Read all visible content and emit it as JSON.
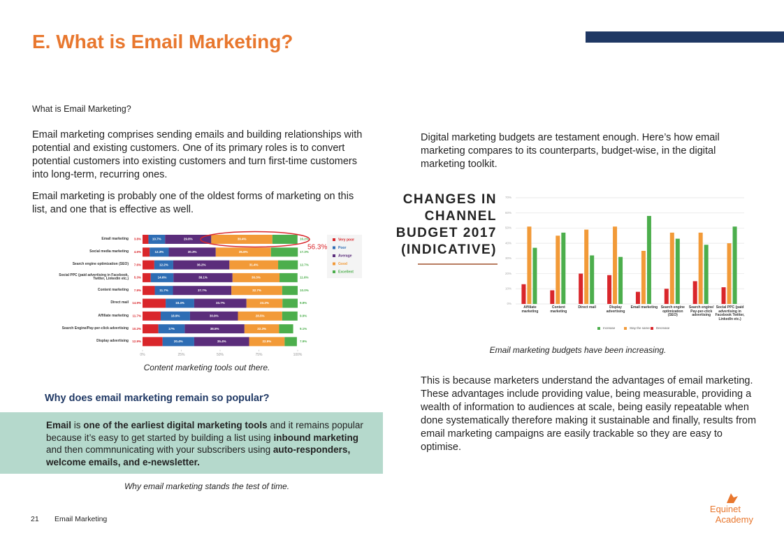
{
  "header": {
    "title": "E. What is Email Marketing?"
  },
  "left": {
    "heading": "What is Email Marketing?",
    "paragraphs": [
      "Email marketing comprises sending emails and building relationships with potential and existing customers. One of its primary roles is to convert potential customers into existing customers and turn first-time customers into long-term, recurring ones.",
      "Email marketing is probably one of the oldest forms of marketing on this list, and one that is effective as well."
    ],
    "chart_caption": "Content marketing tools out there.",
    "subheading": "Why does email marketing remain so popular?",
    "callout": [
      {
        "text": "Email",
        "bold": true
      },
      {
        "text": " is ",
        "bold": false
      },
      {
        "text": "one of the earliest digital marketing tools",
        "bold": true
      },
      {
        "text": " and it remains popular because it’s easy to get started by building a list using ",
        "bold": false
      },
      {
        "text": "inbound marketing",
        "bold": true
      },
      {
        "text": " and then commnunicating with your subscribers using ",
        "bold": false
      },
      {
        "text": "auto-responders, welcome emails, and e-newsletter.",
        "bold": true
      }
    ],
    "callout_caption": "Why email marketing stands the test of time."
  },
  "right": {
    "intro": "Digital marketing budgets are testament enough. Here’s how email marketing compares to its counterparts, budget-wise, in the digital marketing toolkit.",
    "chart_caption": "Email marketing budgets have been increasing.",
    "paragraph": "This is because marketers understand the advantages of email marketing. These advantages include providing value, being measurable, providing a wealth of information to audiences at scale, being easily repeatable when done systematically therefore making it sustainable and finally, results from email marketing campaigns are easily trackable so they are easy to optimise."
  },
  "chart_data": [
    {
      "type": "stacked-bar-horizontal",
      "categories": [
        "Email marketing",
        "Social media marketing",
        "Search engine optimization (SEO)",
        "Social PPC (paid advertising in Facebook, Twitter, Linkedin etc.)",
        "Content marketing",
        "Direct mail",
        "Affiliate marketing",
        "Search Engine/Pay-per-click advertising",
        "Display advertising"
      ],
      "series": [
        {
          "name": "Very poor",
          "color": "#d9262b",
          "values": [
            3.8,
            4.6,
            7.6,
            5.3,
            7.9,
            14.9,
            11.7,
            10.2,
            12.9
          ],
          "value_labels": [
            "3.8%",
            "4.6%",
            "7.6%",
            "5.3%",
            "7.9%",
            "14.9%",
            "11.7%",
            "10.2%",
            "12.9%"
          ]
        },
        {
          "name": "Poor",
          "color": "#2e6db4",
          "values": [
            10.7,
            12.3,
            12.2,
            14.6,
            11.7,
            18.4,
            18.9,
            17,
            20.4
          ],
          "value_labels": [
            "10.7%",
            "12.3%",
            "12.2%",
            "14.6%",
            "11.7%",
            "18.4%",
            "18.9%",
            "17%",
            "20.4%"
          ]
        },
        {
          "name": "Average",
          "color": "#5b2d7b",
          "values": [
            29.8,
            30.3,
            36.2,
            38.1,
            37.7,
            33.7,
            30.9,
            38.5,
            35.4
          ],
          "value_labels": [
            "29.8%",
            "30.3%",
            "36.2%",
            "38.1%",
            "37.7%",
            "33.7%",
            "30.9%",
            "38.5%",
            "35.4%"
          ]
        },
        {
          "name": "Good",
          "color": "#f29a38",
          "values": [
            39.4,
            35.6,
            31.4,
            30.3,
            32.7,
            23.2,
            28.5,
            22.3,
            22.9
          ],
          "value_labels": [
            "39.4%",
            "35.6%",
            "31.4%",
            "30.3%",
            "32.7%",
            "23.2%",
            "28.5%",
            "22.3%",
            "22.9%"
          ]
        },
        {
          "name": "Excellent",
          "color": "#4cae4c",
          "values": [
            16.2,
            17.3,
            12.7,
            11.6,
            10.0,
            9.8,
            9.9,
            9.1,
            7.9
          ],
          "value_labels": [
            "16.2%",
            "17.3%",
            "12.7%",
            "11.6%",
            "10.0%",
            "9.8%",
            "9.9%",
            "9.1%",
            "7.9%"
          ]
        }
      ],
      "xlim": [
        0,
        100
      ],
      "xticks": [
        {
          "value": 0,
          "label": "0%"
        },
        {
          "value": 25,
          "label": "25%"
        },
        {
          "value": 50,
          "label": "50%"
        },
        {
          "value": 75,
          "label": "75%"
        },
        {
          "value": 100,
          "label": "100%"
        }
      ],
      "annotation": "56.3%"
    },
    {
      "type": "bar",
      "title": [
        "CHANGES IN",
        "CHANNEL",
        "BUDGET 2017",
        "(INDICATIVE)"
      ],
      "categories": [
        "Affiliate marketing",
        "Content marketing",
        "Direct mail",
        "Display advertising",
        "Email marketing",
        "Search engine optimization (SEO)",
        "Search engine/ Pay-per-click advertising",
        "Social PPC (paid advertising in Facebook Twitter, LinkedIn etc.)"
      ],
      "series": [
        {
          "name": "Increase",
          "color": "#4cae4c",
          "values": [
            37,
            47,
            32,
            31,
            58,
            43,
            39,
            51
          ]
        },
        {
          "name": "Stay the same",
          "color": "#f29a38",
          "values": [
            51,
            45,
            49,
            51,
            35,
            47,
            47,
            40
          ]
        },
        {
          "name": "Decrease",
          "color": "#d9262b",
          "values": [
            13,
            9,
            20,
            19,
            8,
            10,
            15,
            11
          ]
        }
      ],
      "ylim": [
        0,
        70
      ],
      "yticks": [
        {
          "value": 0,
          "label": "0%"
        },
        {
          "value": 10,
          "label": "10%"
        },
        {
          "value": 20,
          "label": "20%"
        },
        {
          "value": 30,
          "label": "30%"
        },
        {
          "value": 40,
          "label": "40%"
        },
        {
          "value": 50,
          "label": "50%"
        },
        {
          "value": 60,
          "label": "60%"
        },
        {
          "value": 70,
          "label": "70%"
        }
      ],
      "grid": true
    }
  ],
  "footer": {
    "page": "21",
    "label": "Email Marketing",
    "logo": [
      "Equinet",
      "Academy"
    ]
  }
}
